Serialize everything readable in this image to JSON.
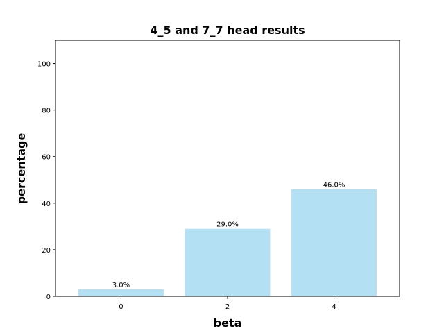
{
  "chart_data": {
    "type": "bar",
    "title": "4_5 and 7_7 head results",
    "xlabel": "beta",
    "ylabel": "percentage",
    "categories": [
      "0",
      "2",
      "4"
    ],
    "values": [
      3.0,
      29.0,
      46.0
    ],
    "data_labels": [
      "3.0%",
      "29.0%",
      "46.0%"
    ],
    "yticks": [
      0,
      20,
      40,
      60,
      80,
      100
    ],
    "ylim": [
      0,
      110
    ],
    "bar_color": "#b3e0f2",
    "grid": false,
    "legend": false
  }
}
